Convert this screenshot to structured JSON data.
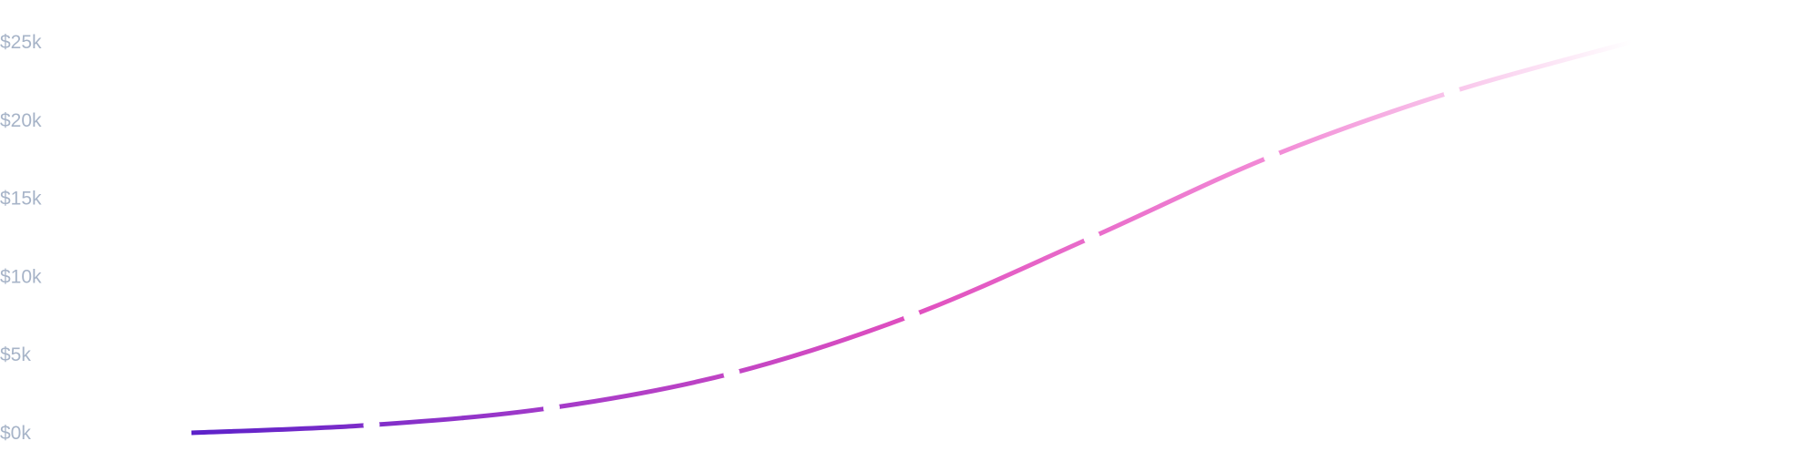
{
  "chart_data": {
    "type": "line",
    "x": [
      0,
      1,
      2,
      3,
      4,
      5,
      6,
      7,
      8
    ],
    "series": [
      {
        "values": [
          0,
          500,
          1600,
          3800,
          7500,
          12500,
          17700,
          21800,
          25000
        ]
      }
    ],
    "ylim": [
      0,
      25000
    ],
    "y_ticks": [
      {
        "value": 0,
        "label": "$0k"
      },
      {
        "value": 5000,
        "label": "$5k"
      },
      {
        "value": 10000,
        "label": "$10k"
      },
      {
        "value": 15000,
        "label": "$15k"
      },
      {
        "value": 20000,
        "label": "$20k"
      },
      {
        "value": 25000,
        "label": "$25k"
      }
    ],
    "grid": false,
    "legend": "none",
    "line_gradient": [
      "#5b21c9",
      "#a33ac9",
      "#e04fbf",
      "#f28ad6",
      "#ffffff"
    ],
    "markers": "white-gap-separators"
  }
}
